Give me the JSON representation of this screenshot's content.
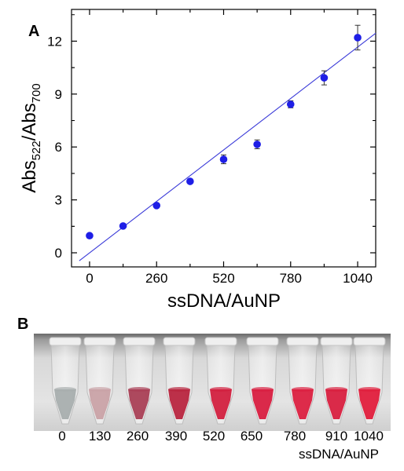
{
  "chart_data": {
    "panel_label": "A",
    "type": "scatter",
    "xlabel": "ssDNA/AuNP",
    "ylabel": {
      "main": "Abs",
      "sub1": "522",
      "mid": "/Abs",
      "sub2": "700"
    },
    "xlim": [
      -70,
      1110
    ],
    "ylim": [
      -0.8,
      13.8
    ],
    "xticks": [
      0,
      260,
      520,
      780,
      1040
    ],
    "yticks": [
      0,
      3,
      6,
      9,
      12
    ],
    "grid": false,
    "marker_color": "#1e1ee6",
    "fit_color": "#3a3ad8",
    "points": [
      {
        "x": 0,
        "y": 0.97,
        "err": 0.08
      },
      {
        "x": 130,
        "y": 1.52,
        "err": 0.08
      },
      {
        "x": 260,
        "y": 2.68,
        "err": 0.08
      },
      {
        "x": 390,
        "y": 4.05,
        "err": 0.1
      },
      {
        "x": 520,
        "y": 5.3,
        "err": 0.25
      },
      {
        "x": 650,
        "y": 6.15,
        "err": 0.25
      },
      {
        "x": 780,
        "y": 8.42,
        "err": 0.2
      },
      {
        "x": 910,
        "y": 9.92,
        "err": 0.4
      },
      {
        "x": 1040,
        "y": 12.2,
        "err": 0.7
      }
    ],
    "fit_line": {
      "x": [
        -40,
        1110
      ],
      "y": [
        -0.45,
        12.45
      ]
    }
  },
  "photo": {
    "panel_label": "B",
    "tube_labels": [
      "0",
      "130",
      "260",
      "390",
      "520",
      "650",
      "780",
      "910",
      "1040"
    ],
    "tube_colors": [
      "#a8aeae",
      "#c9a2a6",
      "#a93f55",
      "#b8253f",
      "#d2203f",
      "#d81e40",
      "#db2040",
      "#d81f3f",
      "#e01e3c"
    ],
    "caption": "ssDNA/AuNP"
  }
}
